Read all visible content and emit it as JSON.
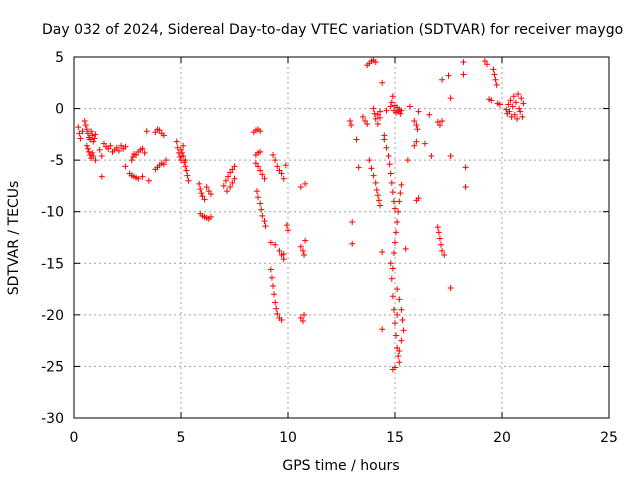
{
  "chart_data": {
    "type": "scatter",
    "title": "Day 032 of 2024, Sidereal Day-to-day VTEC variation (SDTVAR) for receiver maygo",
    "xlabel": "GPS time / hours",
    "ylabel": "SDTVAR / TECUs",
    "xlim": [
      0,
      25
    ],
    "ylim": [
      -30,
      5
    ],
    "xticks": [
      0,
      5,
      10,
      15,
      20,
      25
    ],
    "xtick_labels": [
      "0",
      "5",
      "10",
      "15",
      "20",
      "25"
    ],
    "yticks": [
      5,
      0,
      -5,
      -10,
      -15,
      -20,
      -25,
      -30
    ],
    "ytick_labels": [
      "5",
      "0",
      "-5",
      "-10",
      "-15",
      "-20",
      "-25",
      "-30"
    ],
    "grid": true,
    "marker": "+",
    "marker_color": "#ff0000",
    "series": [
      {
        "name": "SDTVAR",
        "points": [
          [
            0.2,
            -1.8
          ],
          [
            0.25,
            -2.4
          ],
          [
            0.3,
            -2.9
          ],
          [
            0.4,
            -2.2
          ],
          [
            0.5,
            -1.2
          ],
          [
            0.55,
            -1.6
          ],
          [
            0.6,
            -2.0
          ],
          [
            0.65,
            -2.4
          ],
          [
            0.7,
            -2.8
          ],
          [
            0.75,
            -3.0
          ],
          [
            0.8,
            -2.2
          ],
          [
            0.85,
            -2.6
          ],
          [
            0.9,
            -3.2
          ],
          [
            0.95,
            -2.9
          ],
          [
            1.0,
            -2.5
          ],
          [
            0.6,
            -3.6
          ],
          [
            0.65,
            -3.9
          ],
          [
            0.7,
            -4.2
          ],
          [
            0.75,
            -4.5
          ],
          [
            0.8,
            -4.8
          ],
          [
            0.85,
            -4.3
          ],
          [
            0.9,
            -4.6
          ],
          [
            1.0,
            -5.0
          ],
          [
            1.2,
            -4.0
          ],
          [
            1.3,
            -4.6
          ],
          [
            1.3,
            -6.6
          ],
          [
            1.4,
            -3.4
          ],
          [
            1.5,
            -3.7
          ],
          [
            1.6,
            -3.9
          ],
          [
            1.7,
            -3.6
          ],
          [
            1.8,
            -4.2
          ],
          [
            1.9,
            -4.0
          ],
          [
            2.0,
            -3.8
          ],
          [
            2.1,
            -4.1
          ],
          [
            2.2,
            -3.6
          ],
          [
            2.3,
            -3.9
          ],
          [
            2.4,
            -3.7
          ],
          [
            2.4,
            -5.6
          ],
          [
            2.6,
            -6.3
          ],
          [
            2.7,
            -6.5
          ],
          [
            2.8,
            -6.6
          ],
          [
            2.9,
            -6.7
          ],
          [
            3.0,
            -6.8
          ],
          [
            3.2,
            -6.6
          ],
          [
            3.5,
            -7.0
          ],
          [
            2.7,
            -5.0
          ],
          [
            2.75,
            -4.7
          ],
          [
            2.8,
            -4.4
          ],
          [
            2.9,
            -4.5
          ],
          [
            3.0,
            -4.2
          ],
          [
            3.1,
            -4.0
          ],
          [
            3.2,
            -3.9
          ],
          [
            3.3,
            -4.3
          ],
          [
            3.4,
            -2.2
          ],
          [
            3.8,
            -2.3
          ],
          [
            3.9,
            -2.0
          ],
          [
            4.0,
            -2.1
          ],
          [
            4.1,
            -2.4
          ],
          [
            4.2,
            -2.6
          ],
          [
            3.8,
            -5.9
          ],
          [
            3.9,
            -5.7
          ],
          [
            4.0,
            -5.5
          ],
          [
            4.1,
            -5.3
          ],
          [
            4.2,
            -5.4
          ],
          [
            4.3,
            -5.0
          ],
          [
            4.8,
            -3.2
          ],
          [
            4.85,
            -3.8
          ],
          [
            4.9,
            -4.3
          ],
          [
            4.95,
            -4.7
          ],
          [
            5.0,
            -5.0
          ],
          [
            5.05,
            -4.3
          ],
          [
            5.1,
            -4.6
          ],
          [
            5.15,
            -5.2
          ],
          [
            5.2,
            -5.6
          ],
          [
            5.25,
            -6.0
          ],
          [
            5.3,
            -6.5
          ],
          [
            5.35,
            -7.0
          ],
          [
            5.0,
            -4.0
          ],
          [
            5.1,
            -3.6
          ],
          [
            5.2,
            -5.0
          ],
          [
            5.85,
            -7.3
          ],
          [
            5.9,
            -7.8
          ],
          [
            5.95,
            -8.2
          ],
          [
            6.0,
            -8.5
          ],
          [
            6.1,
            -8.8
          ],
          [
            6.2,
            -7.6
          ],
          [
            6.3,
            -8.0
          ],
          [
            6.4,
            -8.3
          ],
          [
            5.9,
            -10.2
          ],
          [
            6.0,
            -10.4
          ],
          [
            6.1,
            -10.5
          ],
          [
            6.2,
            -10.6
          ],
          [
            6.3,
            -10.7
          ],
          [
            6.4,
            -10.5
          ],
          [
            7.0,
            -7.5
          ],
          [
            7.1,
            -7.0
          ],
          [
            7.2,
            -6.6
          ],
          [
            7.3,
            -6.2
          ],
          [
            7.4,
            -5.9
          ],
          [
            7.5,
            -5.6
          ],
          [
            7.15,
            -8.0
          ],
          [
            7.3,
            -7.6
          ],
          [
            7.4,
            -7.2
          ],
          [
            7.5,
            -6.8
          ],
          [
            8.4,
            -2.3
          ],
          [
            8.5,
            -2.1
          ],
          [
            8.6,
            -2.0
          ],
          [
            8.7,
            -2.2
          ],
          [
            8.5,
            -4.5
          ],
          [
            8.6,
            -4.3
          ],
          [
            8.7,
            -4.2
          ],
          [
            8.5,
            -5.3
          ],
          [
            8.6,
            -5.6
          ],
          [
            8.7,
            -6.0
          ],
          [
            8.8,
            -6.4
          ],
          [
            8.9,
            -6.8
          ],
          [
            8.55,
            -8.0
          ],
          [
            8.6,
            -8.6
          ],
          [
            8.7,
            -9.2
          ],
          [
            8.75,
            -9.8
          ],
          [
            8.8,
            -10.4
          ],
          [
            8.9,
            -10.9
          ],
          [
            8.95,
            -11.4
          ],
          [
            9.2,
            -13.0
          ],
          [
            9.4,
            -13.2
          ],
          [
            9.6,
            -13.8
          ],
          [
            9.7,
            -14.2
          ],
          [
            9.8,
            -14.1
          ],
          [
            9.3,
            -4.5
          ],
          [
            9.4,
            -5.0
          ],
          [
            9.5,
            -5.6
          ],
          [
            9.6,
            -6.0
          ],
          [
            9.7,
            -6.3
          ],
          [
            9.8,
            -6.8
          ],
          [
            9.2,
            -15.6
          ],
          [
            9.25,
            -16.4
          ],
          [
            9.3,
            -17.2
          ],
          [
            9.35,
            -18.0
          ],
          [
            9.4,
            -18.8
          ],
          [
            9.45,
            -19.4
          ],
          [
            9.5,
            -19.9
          ],
          [
            9.6,
            -20.3
          ],
          [
            9.7,
            -20.5
          ],
          [
            9.8,
            -14.6
          ],
          [
            9.9,
            -5.5
          ],
          [
            9.95,
            -11.3
          ],
          [
            10.0,
            -11.8
          ],
          [
            10.6,
            -13.4
          ],
          [
            10.7,
            -13.8
          ],
          [
            10.75,
            -14.2
          ],
          [
            10.8,
            -12.8
          ],
          [
            10.6,
            -20.3
          ],
          [
            10.7,
            -20.6
          ],
          [
            10.75,
            -20.0
          ],
          [
            10.6,
            -7.6
          ],
          [
            10.8,
            -7.3
          ],
          [
            12.9,
            -1.2
          ],
          [
            12.95,
            -1.6
          ],
          [
            13.0,
            -11.0
          ],
          [
            13.0,
            -13.1
          ],
          [
            13.2,
            -3.0
          ],
          [
            13.3,
            -5.7
          ],
          [
            13.5,
            -0.8
          ],
          [
            13.6,
            -1.2
          ],
          [
            13.7,
            -1.5
          ],
          [
            13.7,
            4.2
          ],
          [
            13.8,
            4.4
          ],
          [
            13.9,
            4.6
          ],
          [
            14.0,
            4.7
          ],
          [
            14.1,
            4.5
          ],
          [
            13.8,
            -5.0
          ],
          [
            13.9,
            -5.8
          ],
          [
            14.0,
            -6.5
          ],
          [
            14.1,
            -7.2
          ],
          [
            14.15,
            -7.9
          ],
          [
            14.2,
            -8.4
          ],
          [
            14.25,
            -8.9
          ],
          [
            14.3,
            -9.4
          ],
          [
            14.0,
            0.0
          ],
          [
            14.05,
            -0.5
          ],
          [
            14.1,
            -1.0
          ],
          [
            14.2,
            -0.6
          ],
          [
            14.3,
            -0.3
          ],
          [
            14.2,
            -1.5
          ],
          [
            14.3,
            -0.9
          ],
          [
            14.4,
            2.5
          ],
          [
            14.5,
            -2.6
          ],
          [
            14.4,
            -13.9
          ],
          [
            14.4,
            -21.4
          ],
          [
            14.6,
            -0.2
          ],
          [
            14.5,
            -3.0
          ],
          [
            14.6,
            -3.8
          ],
          [
            14.7,
            -4.6
          ],
          [
            14.75,
            -5.4
          ],
          [
            14.8,
            -6.3
          ],
          [
            14.85,
            -7.2
          ],
          [
            14.9,
            -8.1
          ],
          [
            14.95,
            -9.0
          ],
          [
            15.0,
            -9.7
          ],
          [
            14.8,
            0.2
          ],
          [
            14.85,
            0.6
          ],
          [
            14.9,
            1.2
          ],
          [
            14.95,
            -0.2
          ],
          [
            15.0,
            0.3
          ],
          [
            15.05,
            -0.4
          ],
          [
            15.1,
            0.1
          ],
          [
            15.15,
            -0.3
          ],
          [
            15.2,
            -0.1
          ],
          [
            15.25,
            -0.5
          ],
          [
            15.3,
            -0.2
          ],
          [
            14.8,
            -15.0
          ],
          [
            14.85,
            -16.5
          ],
          [
            14.9,
            -18.2
          ],
          [
            14.95,
            -19.5
          ],
          [
            15.0,
            -20.8
          ],
          [
            15.05,
            -22.0
          ],
          [
            15.1,
            -23.2
          ],
          [
            15.15,
            -24.0
          ],
          [
            15.2,
            -24.6
          ],
          [
            15.0,
            -25.1
          ],
          [
            14.9,
            -25.3
          ],
          [
            14.9,
            -15.5
          ],
          [
            14.95,
            -14.0
          ],
          [
            15.0,
            -13.0
          ],
          [
            15.05,
            -12.0
          ],
          [
            15.1,
            -11.0
          ],
          [
            15.15,
            -10.0
          ],
          [
            15.2,
            -9.0
          ],
          [
            15.25,
            -8.2
          ],
          [
            15.3,
            -7.4
          ],
          [
            15.1,
            -17.5
          ],
          [
            15.2,
            -18.5
          ],
          [
            15.3,
            -19.5
          ],
          [
            15.35,
            -20.5
          ],
          [
            15.4,
            -21.5
          ],
          [
            15.3,
            -22.5
          ],
          [
            15.2,
            -23.5
          ],
          [
            15.1,
            -20.0
          ],
          [
            15.5,
            -13.6
          ],
          [
            15.6,
            -5.0
          ],
          [
            15.7,
            0.2
          ],
          [
            15.9,
            -1.2
          ],
          [
            16.0,
            -1.6
          ],
          [
            16.05,
            -2.0
          ],
          [
            16.0,
            -3.2
          ],
          [
            15.9,
            -3.6
          ],
          [
            16.1,
            -8.7
          ],
          [
            16.0,
            -8.9
          ],
          [
            16.1,
            -0.3
          ],
          [
            16.4,
            -3.4
          ],
          [
            16.6,
            -0.6
          ],
          [
            16.7,
            -4.6
          ],
          [
            17.0,
            -1.3
          ],
          [
            17.1,
            -1.6
          ],
          [
            17.2,
            -1.2
          ],
          [
            17.0,
            -11.5
          ],
          [
            17.05,
            -12.0
          ],
          [
            17.1,
            -12.6
          ],
          [
            17.15,
            -13.2
          ],
          [
            17.2,
            -13.8
          ],
          [
            17.3,
            -14.2
          ],
          [
            17.2,
            2.8
          ],
          [
            17.5,
            3.2
          ],
          [
            17.6,
            1.0
          ],
          [
            17.6,
            -4.6
          ],
          [
            17.6,
            -17.4
          ],
          [
            18.2,
            4.5
          ],
          [
            18.2,
            3.3
          ],
          [
            18.3,
            -5.7
          ],
          [
            18.3,
            -7.6
          ],
          [
            19.2,
            4.6
          ],
          [
            19.3,
            4.3
          ],
          [
            19.4,
            0.9
          ],
          [
            19.5,
            0.8
          ],
          [
            19.6,
            3.8
          ],
          [
            19.65,
            3.3
          ],
          [
            19.7,
            2.8
          ],
          [
            19.75,
            2.3
          ],
          [
            19.8,
            0.5
          ],
          [
            19.9,
            0.4
          ],
          [
            20.2,
            -0.1
          ],
          [
            20.25,
            -0.5
          ],
          [
            20.3,
            0.4
          ],
          [
            20.35,
            -0.3
          ],
          [
            20.4,
            0.8
          ],
          [
            20.45,
            -0.8
          ],
          [
            20.5,
            0.2
          ],
          [
            20.55,
            1.2
          ],
          [
            20.6,
            -0.6
          ],
          [
            20.65,
            0.6
          ],
          [
            20.7,
            -1.0
          ],
          [
            20.75,
            1.4
          ],
          [
            20.8,
            0.0
          ],
          [
            20.85,
            -0.3
          ],
          [
            20.9,
            1.0
          ],
          [
            20.95,
            -0.8
          ],
          [
            21.0,
            0.5
          ]
        ]
      }
    ]
  }
}
